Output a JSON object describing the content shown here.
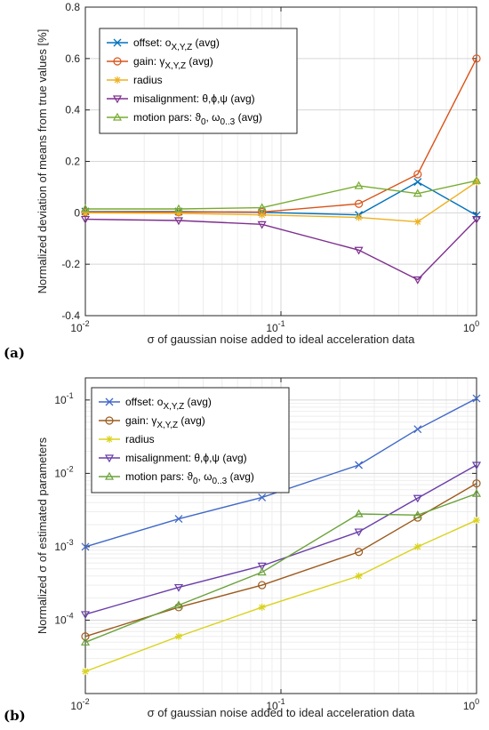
{
  "chart_data": [
    {
      "panel_label": "(a)",
      "type": "line",
      "xscale": "log",
      "yscale": "linear",
      "xlim": [
        0.01,
        1
      ],
      "ylim": [
        -0.4,
        0.8
      ],
      "xticks": [
        0.01,
        0.1,
        1
      ],
      "xtick_labels": [
        {
          "base": "10",
          "exp": "-2"
        },
        {
          "base": "10",
          "exp": "-1"
        },
        {
          "base": "10",
          "exp": "0"
        }
      ],
      "yticks": [
        -0.4,
        -0.2,
        0,
        0.2,
        0.4,
        0.6,
        0.8
      ],
      "ytick_labels": [
        "-0.4",
        "-0.2",
        "0",
        "0.2",
        "0.4",
        "0.6",
        "0.8"
      ],
      "xlabel": "σ of gaussian noise added to ideal acceleration data",
      "ylabel": "Normalized deviation of means from true values [%]",
      "grid": true,
      "legend_position": "top-left",
      "x": [
        0.01,
        0.03,
        0.08,
        0.25,
        0.5,
        1
      ],
      "series": [
        {
          "name": "offset: o",
          "sub": "X,Y,Z",
          "suffix": "  (avg)",
          "color": "#0072BD",
          "marker": "x",
          "values": [
            0.005,
            0.005,
            0.002,
            -0.008,
            0.12,
            -0.01
          ]
        },
        {
          "name": "gain: γ",
          "sub": "X,Y,Z",
          "suffix": "  (avg)",
          "color": "#D95319",
          "marker": "o",
          "values": [
            0.003,
            0.003,
            0.003,
            0.035,
            0.15,
            0.6
          ]
        },
        {
          "name": "radius",
          "sub": "",
          "suffix": "",
          "color": "#EDB120",
          "marker": "*",
          "values": [
            0.0,
            -0.002,
            -0.008,
            -0.018,
            -0.035,
            0.12
          ]
        },
        {
          "name": "misalignment: θ,ϕ,ψ",
          "sub": "",
          "suffix": "  (avg)",
          "color": "#7E2F8E",
          "marker": "v",
          "values": [
            -0.025,
            -0.03,
            -0.045,
            -0.145,
            -0.26,
            -0.025
          ]
        },
        {
          "name": "motion pars:  ϑ",
          "sub": "0",
          "mid": ", ω",
          "sub2": "0..3",
          "suffix": "  (avg)",
          "color": "#77AC30",
          "marker": "^",
          "values": [
            0.015,
            0.015,
            0.02,
            0.105,
            0.075,
            0.125
          ]
        }
      ]
    },
    {
      "panel_label": "(b)",
      "type": "line",
      "xscale": "log",
      "yscale": "log",
      "xlim": [
        0.01,
        1
      ],
      "ylim": [
        1e-05,
        0.2
      ],
      "xticks": [
        0.01,
        0.1,
        1
      ],
      "xtick_labels": [
        {
          "base": "10",
          "exp": "-2"
        },
        {
          "base": "10",
          "exp": "-1"
        },
        {
          "base": "10",
          "exp": "0"
        }
      ],
      "yticks": [
        0.0001,
        0.001,
        0.01,
        0.1
      ],
      "ytick_labels": [
        {
          "base": "10",
          "exp": "-4"
        },
        {
          "base": "10",
          "exp": "-3"
        },
        {
          "base": "10",
          "exp": "-2"
        },
        {
          "base": "10",
          "exp": "-1"
        }
      ],
      "xlabel": "σ of gaussian noise added to ideal acceleration data",
      "ylabel": "Normalized σ of estimated parameters",
      "grid": true,
      "legend_position": "top-left",
      "x": [
        0.01,
        0.03,
        0.08,
        0.25,
        0.5,
        1
      ],
      "series": [
        {
          "name": "offset: o",
          "sub": "X,Y,Z",
          "suffix": "  (avg)",
          "color": "#4169C7",
          "marker": "x",
          "values": [
            0.001,
            0.0024,
            0.0047,
            0.013,
            0.04,
            0.105
          ]
        },
        {
          "name": "gain: γ",
          "sub": "X,Y,Z",
          "suffix": "  (avg)",
          "color": "#9C5A1C",
          "marker": "o",
          "values": [
            6e-05,
            0.00015,
            0.0003,
            0.00085,
            0.0025,
            0.0073
          ]
        },
        {
          "name": "radius",
          "sub": "",
          "suffix": "",
          "color": "#D9D21E",
          "marker": "*",
          "values": [
            2e-05,
            6e-05,
            0.00015,
            0.0004,
            0.001,
            0.0023
          ]
        },
        {
          "name": "misalignment: θ,ϕ,ψ",
          "sub": "",
          "suffix": "  (avg)",
          "color": "#6A3DA8",
          "marker": "v",
          "values": [
            0.00012,
            0.00028,
            0.00055,
            0.0016,
            0.0046,
            0.013
          ]
        },
        {
          "name": "motion pars:  ϑ",
          "sub": "0",
          "mid": ", ω",
          "sub2": "0..3",
          "suffix": "  (avg)",
          "color": "#6AA23A",
          "marker": "^",
          "values": [
            5e-05,
            0.00016,
            0.00045,
            0.0028,
            0.0027,
            0.0053
          ]
        }
      ]
    }
  ]
}
